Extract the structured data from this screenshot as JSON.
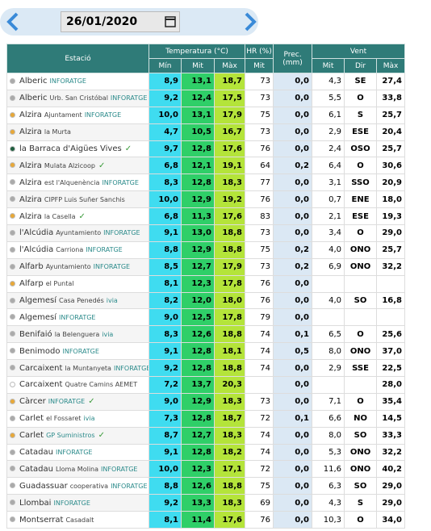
{
  "date": "26/01/2020",
  "header": {
    "station": "Estació",
    "temperature": "Temperatura (°C)",
    "humidity": "HR (%)",
    "precipitation": "Prec. (mm)",
    "wind": "Vent",
    "sub": [
      "Mín",
      "Mit",
      "Màx",
      "Mit",
      "Mit",
      "Dir",
      "Màx"
    ]
  },
  "rows": [
    {
      "name": "Alberic",
      "place": null,
      "tag": "INFORATGE",
      "check": false,
      "dot": "#aaaaaa",
      "cells": [
        "8,9",
        "13,1",
        "18,7",
        "73",
        "0,0",
        "4,3",
        "SE",
        "27,4"
      ]
    },
    {
      "name": "Alberic",
      "place": "Urb. San Cristóbal",
      "tag": "INFORATGE",
      "check": false,
      "dot": "#aaaaaa",
      "cells": [
        "9,2",
        "12,4",
        "17,5",
        "73",
        "0,0",
        "5,5",
        "O",
        "33,8"
      ]
    },
    {
      "name": "Alzira",
      "place": "Ajuntament",
      "tag": "INFORATGE",
      "check": false,
      "dot": "#e8a838",
      "cells": [
        "10,0",
        "13,1",
        "17,9",
        "75",
        "0,0",
        "6,1",
        "S",
        "25,7"
      ]
    },
    {
      "name": "Alzira",
      "place": "la Murta",
      "tag": null,
      "check": false,
      "dot": "#e8a838",
      "cells": [
        "4,7",
        "10,5",
        "16,7",
        "73",
        "0,0",
        "2,9",
        "ESE",
        "20,4"
      ]
    },
    {
      "name": "la Barraca d'Aigües Vives",
      "place": null,
      "tag": null,
      "check": true,
      "dot": "#1f5f3f",
      "cells": [
        "9,7",
        "12,8",
        "17,6",
        "76",
        "0,0",
        "2,4",
        "OSO",
        "25,7"
      ]
    },
    {
      "name": "Alzira",
      "place": "Mulata Alzicoop",
      "tag": null,
      "check": true,
      "dot": "#e8a838",
      "cells": [
        "6,8",
        "12,1",
        "19,1",
        "64",
        "0,2",
        "6,4",
        "O",
        "30,6"
      ]
    },
    {
      "name": "Alzira",
      "place": "est l'Alquenència",
      "tag": "INFORATGE",
      "check": false,
      "dot": "#aaaaaa",
      "cells": [
        "8,3",
        "12,8",
        "18,3",
        "77",
        "0,0",
        "3,1",
        "SSO",
        "20,9"
      ]
    },
    {
      "name": "Alzira",
      "place": "CIPFP Luis Suñer Sanchis",
      "tag": null,
      "check": false,
      "dot": "#aaaaaa",
      "cells": [
        "10,0",
        "12,9",
        "19,2",
        "76",
        "0,0",
        "0,7",
        "ENE",
        "18,0"
      ]
    },
    {
      "name": "Alzira",
      "place": "la Casella",
      "tag": null,
      "check": true,
      "dot": "#e8a838",
      "cells": [
        "6,8",
        "11,3",
        "17,6",
        "83",
        "0,0",
        "2,1",
        "ESE",
        "19,3"
      ]
    },
    {
      "name": "l'Alcúdia",
      "place": "Ayuntamiento",
      "tag": "INFORATGE",
      "check": false,
      "dot": "#aaaaaa",
      "cells": [
        "9,1",
        "13,0",
        "18,8",
        "73",
        "0,0",
        "3,4",
        "O",
        "29,0"
      ]
    },
    {
      "name": "l'Alcúdia",
      "place": "Carriona",
      "tag": "INFORATGE",
      "check": false,
      "dot": "#aaaaaa",
      "cells": [
        "8,8",
        "12,9",
        "18,8",
        "75",
        "0,2",
        "4,0",
        "ONO",
        "25,7"
      ]
    },
    {
      "name": "Alfarb",
      "place": "Ayuntamiento",
      "tag": "INFORATGE",
      "check": false,
      "dot": "#aaaaaa",
      "cells": [
        "8,5",
        "12,7",
        "17,9",
        "73",
        "0,2",
        "6,9",
        "ONO",
        "32,2"
      ]
    },
    {
      "name": "Alfarp",
      "place": "el Puntal",
      "tag": null,
      "check": false,
      "dot": "#e8a838",
      "cells": [
        "8,1",
        "12,3",
        "17,8",
        "76",
        "0,0",
        null,
        null,
        null
      ]
    },
    {
      "name": "Algemesí",
      "place": "Casa Penedés",
      "tag": "ivia",
      "check": false,
      "dot": "#aaaaaa",
      "cells": [
        "8,2",
        "12,0",
        "18,0",
        "76",
        "0,0",
        "4,0",
        "SO",
        "16,8"
      ]
    },
    {
      "name": "Algemesí",
      "place": null,
      "tag": "INFORATGE",
      "check": false,
      "dot": "#aaaaaa",
      "cells": [
        "9,0",
        "12,5",
        "17,8",
        "79",
        "0,0",
        null,
        null,
        null
      ]
    },
    {
      "name": "Benifaió",
      "place": "la Belenguera",
      "tag": "ivia",
      "check": false,
      "dot": "#aaaaaa",
      "cells": [
        "8,3",
        "12,6",
        "18,8",
        "74",
        "0,1",
        "6,5",
        "O",
        "25,6"
      ]
    },
    {
      "name": "Benimodo",
      "place": null,
      "tag": "INFORATGE",
      "check": false,
      "dot": "#aaaaaa",
      "cells": [
        "9,1",
        "12,8",
        "18,1",
        "74",
        "0,5",
        "8,0",
        "ONO",
        "37,0"
      ]
    },
    {
      "name": "Carcaixent",
      "place": "la Muntanyeta",
      "tag": "INFORATGE",
      "check": false,
      "dot": "#aaaaaa",
      "cells": [
        "9,2",
        "12,8",
        "18,8",
        "74",
        "0,0",
        "2,9",
        "SSE",
        "22,5"
      ]
    },
    {
      "name": "Carcaixent",
      "place": "Quatre Camins AEMET",
      "tag": null,
      "check": false,
      "dot": "#ffffff",
      "cells": [
        "7,2",
        "13,7",
        "20,3",
        null,
        "0,0",
        null,
        null,
        "28,0"
      ]
    },
    {
      "name": "Càrcer",
      "place": null,
      "tag": "INFORATGE",
      "check": true,
      "dot": "#e8a838",
      "cells": [
        "9,0",
        "12,9",
        "18,3",
        "73",
        "0,0",
        "7,1",
        "O",
        "35,4"
      ]
    },
    {
      "name": "Carlet",
      "place": "el Fossaret",
      "tag": "ivia",
      "check": false,
      "dot": "#aaaaaa",
      "cells": [
        "7,3",
        "12,8",
        "18,7",
        "72",
        "0,1",
        "6,6",
        "NO",
        "14,5"
      ]
    },
    {
      "name": "Carlet",
      "place": null,
      "tag": "GP Suministros",
      "check": true,
      "dot": "#e8a838",
      "cells": [
        "8,7",
        "12,7",
        "18,3",
        "74",
        "0,0",
        "8,0",
        "SO",
        "33,3"
      ]
    },
    {
      "name": "Catadau",
      "place": null,
      "tag": "INFORATGE",
      "check": false,
      "dot": "#aaaaaa",
      "cells": [
        "9,1",
        "12,8",
        "18,2",
        "74",
        "0,0",
        "5,3",
        "ONO",
        "32,2"
      ]
    },
    {
      "name": "Catadau",
      "place": "Lloma Molina",
      "tag": "INFORATGE",
      "check": false,
      "dot": "#aaaaaa",
      "cells": [
        "10,0",
        "12,3",
        "17,1",
        "72",
        "0,0",
        "11,6",
        "ONO",
        "40,2"
      ]
    },
    {
      "name": "Guadassuar",
      "place": "cooperativa",
      "tag": "INFORATGE",
      "check": false,
      "dot": "#aaaaaa",
      "cells": [
        "8,8",
        "12,6",
        "18,8",
        "75",
        "0,0",
        "6,3",
        "SO",
        "29,0"
      ]
    },
    {
      "name": "Llombai",
      "place": null,
      "tag": "INFORATGE",
      "check": false,
      "dot": "#aaaaaa",
      "cells": [
        "9,2",
        "13,3",
        "18,3",
        "69",
        "0,0",
        "4,3",
        "S",
        "29,0"
      ]
    },
    {
      "name": "Montserrat",
      "place": "Casadalt",
      "tag": null,
      "check": false,
      "dot": "#aaaaaa",
      "cells": [
        "8,1",
        "11,4",
        "17,6",
        "76",
        "0,0",
        "10,3",
        "O",
        "34,0"
      ]
    }
  ]
}
